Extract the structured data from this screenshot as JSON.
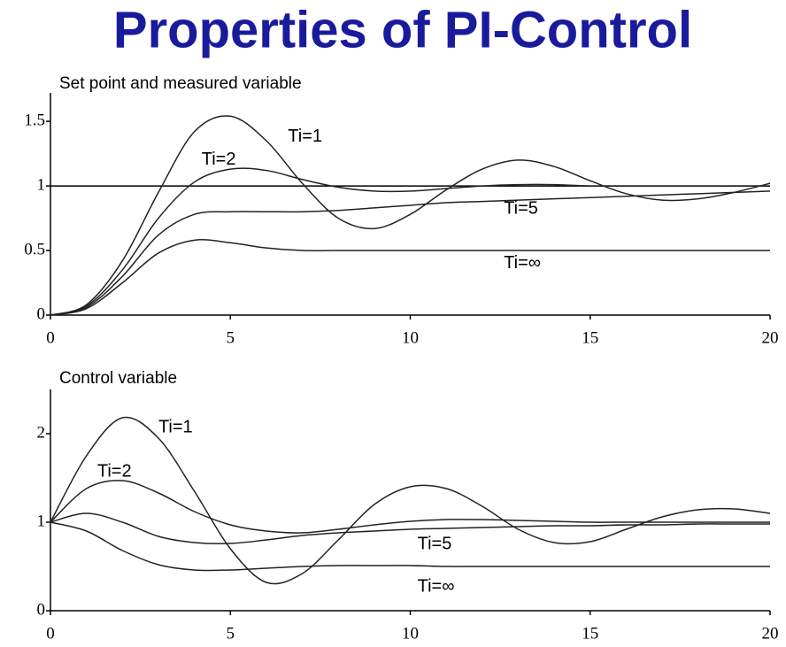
{
  "title": "Properties of PI-Control",
  "chart_data": [
    {
      "type": "line",
      "title": "Set point and measured variable",
      "x": [
        0,
        1,
        2,
        3,
        4,
        5,
        6,
        7,
        8,
        9,
        10,
        11,
        12,
        13,
        14,
        15,
        16,
        17,
        18,
        19,
        20
      ],
      "xlim": [
        0,
        20
      ],
      "xticks": [
        0,
        5,
        10,
        15,
        20
      ],
      "ylim": [
        0,
        1.72
      ],
      "yticks": [
        0,
        0.5,
        1,
        1.5
      ],
      "series": [
        {
          "color": "#000000",
          "values": [
            1,
            1,
            1,
            1,
            1,
            1,
            1,
            1,
            1,
            1,
            1,
            1,
            1,
            1,
            1,
            1,
            1,
            1,
            1,
            1,
            1
          ]
        },
        {
          "name": "Ti=1",
          "color": "#222222",
          "values": [
            0,
            0.08,
            0.42,
            0.95,
            1.42,
            1.54,
            1.35,
            1.02,
            0.75,
            0.67,
            0.78,
            0.97,
            1.13,
            1.2,
            1.15,
            1.04,
            0.94,
            0.89,
            0.9,
            0.95,
            1.02
          ]
        },
        {
          "name": "Ti=2",
          "color": "#222222",
          "values": [
            0,
            0.07,
            0.35,
            0.75,
            1.03,
            1.13,
            1.12,
            1.05,
            0.99,
            0.96,
            0.96,
            0.98,
            1.0,
            1.01,
            1.01,
            1.0,
            1.0,
            1.0,
            1.0,
            1.0,
            1.0
          ]
        },
        {
          "name": "Ti=5",
          "color": "#222222",
          "values": [
            0,
            0.06,
            0.3,
            0.62,
            0.78,
            0.8,
            0.8,
            0.8,
            0.81,
            0.83,
            0.85,
            0.87,
            0.88,
            0.89,
            0.9,
            0.91,
            0.92,
            0.93,
            0.94,
            0.95,
            0.96
          ]
        },
        {
          "name": "Ti=∞",
          "color": "#222222",
          "values": [
            0,
            0.05,
            0.25,
            0.48,
            0.58,
            0.56,
            0.52,
            0.5,
            0.5,
            0.5,
            0.5,
            0.5,
            0.5,
            0.5,
            0.5,
            0.5,
            0.5,
            0.5,
            0.5,
            0.5,
            0.5
          ]
        }
      ]
    },
    {
      "type": "line",
      "title": "Control variable",
      "x": [
        0,
        1,
        2,
        3,
        4,
        5,
        6,
        7,
        8,
        9,
        10,
        11,
        12,
        13,
        14,
        15,
        16,
        17,
        18,
        19,
        20
      ],
      "xlim": [
        0,
        20
      ],
      "xticks": [
        0,
        5,
        10,
        15,
        20
      ],
      "ylim": [
        0,
        2.5
      ],
      "yticks": [
        0,
        1,
        2
      ],
      "series": [
        {
          "name": "Ti=1",
          "color": "#222222",
          "values": [
            1,
            1.75,
            2.18,
            1.95,
            1.35,
            0.7,
            0.32,
            0.42,
            0.8,
            1.2,
            1.4,
            1.38,
            1.18,
            0.92,
            0.77,
            0.78,
            0.92,
            1.06,
            1.14,
            1.15,
            1.1
          ]
        },
        {
          "name": "Ti=2",
          "color": "#222222",
          "values": [
            1,
            1.38,
            1.47,
            1.33,
            1.12,
            0.97,
            0.9,
            0.88,
            0.92,
            0.97,
            1.01,
            1.03,
            1.03,
            1.02,
            1.01,
            1.0,
            1.0,
            1.0,
            1.0,
            1.0,
            1.0
          ]
        },
        {
          "name": "Ti=5",
          "color": "#222222",
          "values": [
            1,
            1.1,
            1.0,
            0.84,
            0.77,
            0.76,
            0.8,
            0.85,
            0.88,
            0.9,
            0.92,
            0.93,
            0.94,
            0.95,
            0.96,
            0.96,
            0.97,
            0.97,
            0.98,
            0.98,
            0.98
          ]
        },
        {
          "name": "Ti=∞",
          "color": "#222222",
          "values": [
            1,
            0.9,
            0.68,
            0.52,
            0.46,
            0.46,
            0.48,
            0.5,
            0.51,
            0.51,
            0.51,
            0.5,
            0.5,
            0.5,
            0.5,
            0.5,
            0.5,
            0.5,
            0.5,
            0.5,
            0.5
          ]
        }
      ]
    }
  ]
}
